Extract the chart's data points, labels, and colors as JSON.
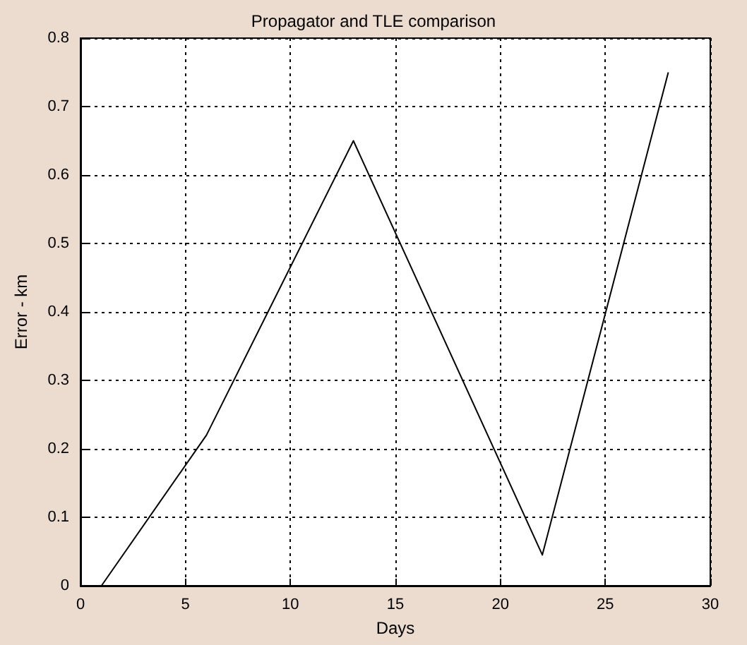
{
  "chart_data": {
    "type": "line",
    "title": "Propagator and TLE comparison",
    "xlabel": "Days",
    "ylabel": "Error - km",
    "x": [
      1,
      6,
      13,
      22,
      28
    ],
    "series": [
      {
        "color": "#000000",
        "values": [
          0,
          0.22,
          0.65,
          0.045,
          0.75
        ]
      }
    ],
    "xlim": [
      0,
      30
    ],
    "xticks": [
      0,
      5,
      10,
      15,
      20,
      25,
      30
    ],
    "ylim": [
      0,
      0.8
    ],
    "yticks": [
      0,
      0.1,
      0.2,
      0.3,
      0.4,
      0.5,
      0.6,
      0.7,
      0.8
    ],
    "grid": true,
    "marker": "none",
    "line_style": "solid"
  }
}
